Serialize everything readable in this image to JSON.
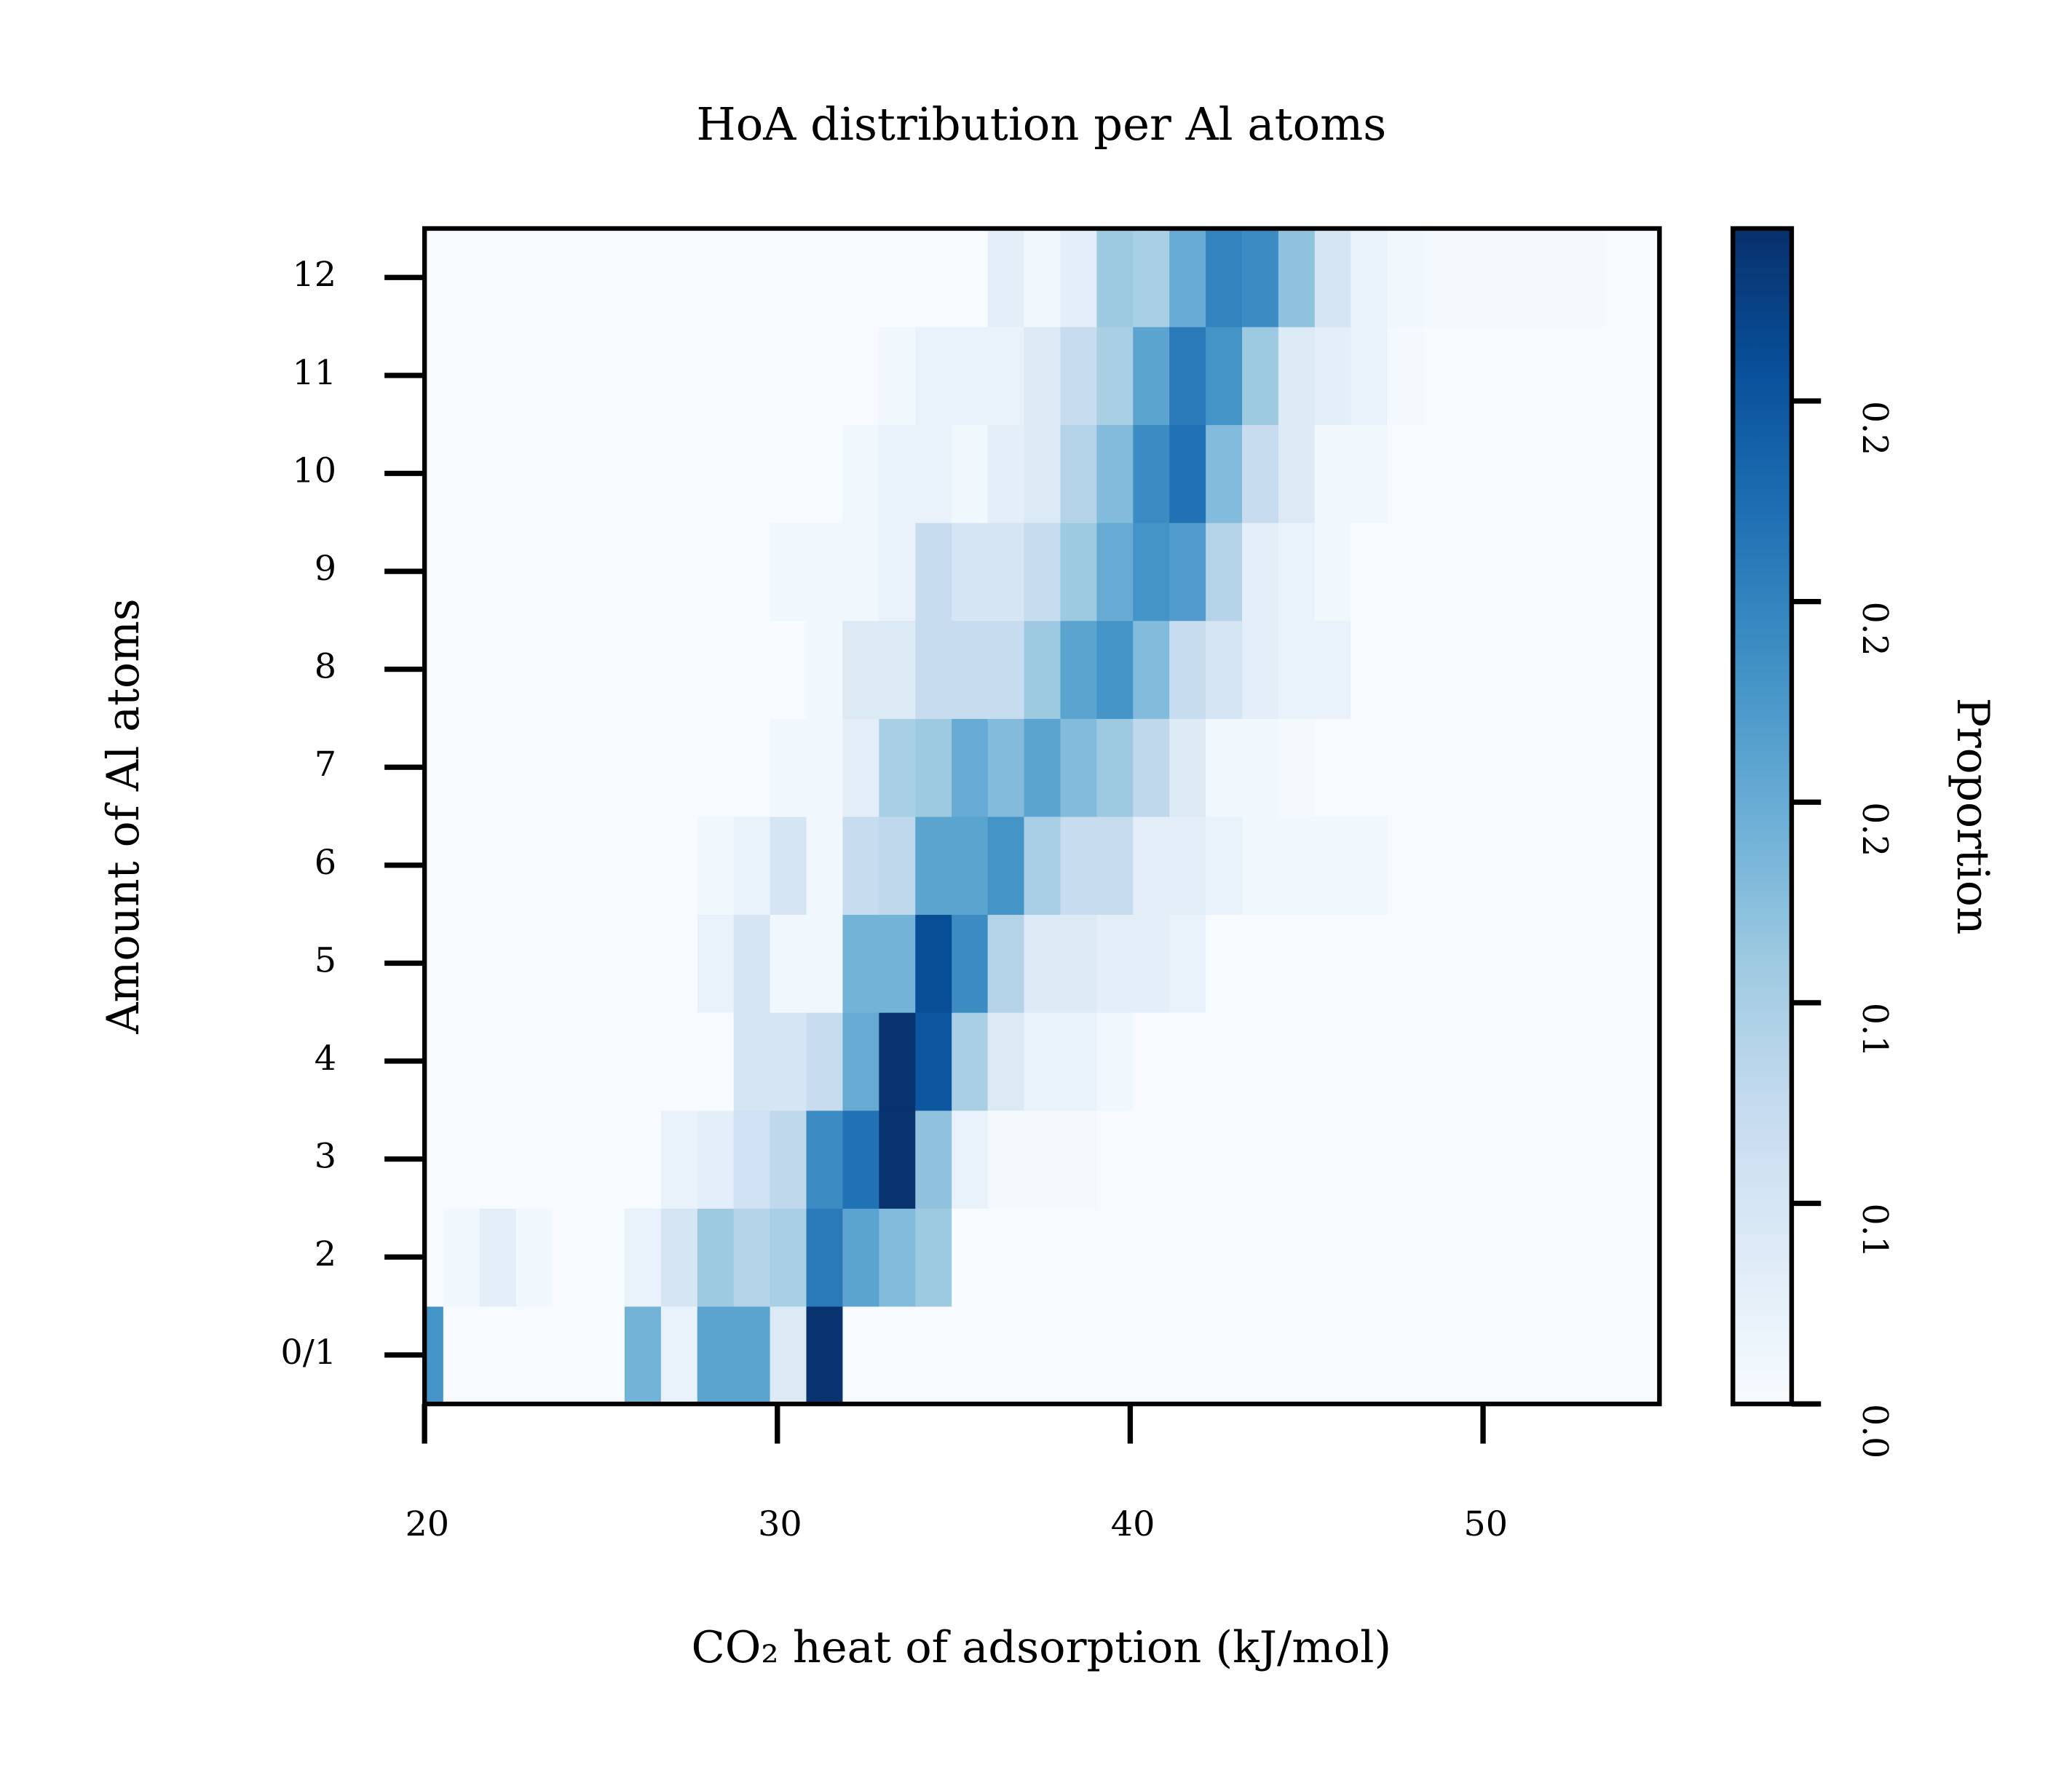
{
  "chart_data": {
    "type": "heatmap",
    "title": "HoA distribution per Al atoms",
    "x_label": "CO₂ heat of adsorption (kJ/mol)",
    "y_label": "Amount of Al atoms",
    "colorbar_label": "Proportion",
    "xlim": [
      20,
      55
    ],
    "xticks": [
      20,
      30,
      40,
      50
    ],
    "x_bins": [
      19.5,
      20.53,
      21.56,
      22.59,
      23.62,
      24.65,
      25.67,
      26.7,
      27.73,
      28.76,
      29.79,
      30.82,
      31.85,
      32.88,
      33.91,
      34.94,
      35.96,
      36.99,
      38.02,
      39.05,
      40.08,
      41.11,
      42.14,
      43.17,
      44.2,
      45.23,
      46.25,
      47.28,
      48.31,
      49.34,
      50.37,
      51.4,
      52.43,
      53.46,
      54.49,
      55.52
    ],
    "categories": [
      "0/1",
      "2",
      "3",
      "4",
      "5",
      "6",
      "7",
      "8",
      "9",
      "10",
      "11",
      "12"
    ],
    "values": [
      [
        0.18,
        0,
        0,
        0,
        0,
        0,
        0.14,
        0.02,
        0.16,
        0.16,
        0.04,
        0.29,
        0,
        0,
        0,
        0,
        0,
        0,
        0,
        0,
        0,
        0,
        0,
        0,
        0,
        0,
        0,
        0,
        0,
        0,
        0,
        0,
        0,
        0,
        0
      ],
      [
        0,
        0.01,
        0.03,
        0.01,
        0,
        0,
        0.02,
        0.05,
        0.11,
        0.09,
        0.1,
        0.21,
        0.16,
        0.13,
        0.11,
        0,
        0,
        0,
        0,
        0,
        0,
        0,
        0,
        0,
        0,
        0,
        0,
        0,
        0,
        0,
        0,
        0,
        0,
        0,
        0
      ],
      [
        0,
        0,
        0,
        0,
        0,
        0,
        0,
        0.02,
        0.03,
        0.06,
        0.08,
        0.19,
        0.22,
        0.29,
        0.12,
        0.02,
        0.005,
        0.005,
        0.005,
        0,
        0,
        0,
        0,
        0,
        0,
        0,
        0,
        0,
        0,
        0,
        0,
        0,
        0,
        0,
        0
      ],
      [
        0,
        0,
        0,
        0,
        0,
        0,
        0,
        0,
        0,
        0.05,
        0.05,
        0.07,
        0.15,
        0.29,
        0.25,
        0.1,
        0.04,
        0.02,
        0.02,
        0.01,
        0,
        0,
        0,
        0,
        0,
        0,
        0,
        0,
        0,
        0,
        0,
        0,
        0,
        0,
        0
      ],
      [
        0,
        0,
        0,
        0,
        0,
        0,
        0,
        0,
        0.02,
        0.05,
        0.01,
        0.01,
        0.14,
        0.14,
        0.26,
        0.19,
        0.09,
        0.04,
        0.04,
        0.03,
        0.03,
        0.02,
        0,
        0,
        0,
        0,
        0,
        0,
        0,
        0,
        0,
        0,
        0,
        0,
        0
      ],
      [
        0,
        0,
        0,
        0,
        0,
        0,
        0,
        0,
        0.01,
        0.02,
        0.05,
        0.01,
        0.07,
        0.08,
        0.16,
        0.16,
        0.18,
        0.1,
        0.07,
        0.07,
        0.03,
        0.03,
        0.02,
        0.01,
        0.01,
        0.01,
        0.01,
        0,
        0,
        0,
        0,
        0,
        0,
        0,
        0
      ],
      [
        0,
        0,
        0,
        0,
        0,
        0,
        0,
        0,
        0,
        0,
        0.01,
        0.01,
        0.03,
        0.1,
        0.11,
        0.15,
        0.13,
        0.16,
        0.13,
        0.11,
        0.08,
        0.04,
        0.01,
        0.01,
        0.005,
        0,
        0,
        0,
        0,
        0,
        0,
        0,
        0,
        0,
        0
      ],
      [
        0,
        0,
        0,
        0,
        0,
        0,
        0,
        0,
        0,
        0,
        0,
        0.01,
        0.04,
        0.04,
        0.07,
        0.07,
        0.07,
        0.11,
        0.16,
        0.18,
        0.13,
        0.07,
        0.05,
        0.03,
        0.02,
        0.02,
        0,
        0,
        0,
        0,
        0,
        0,
        0,
        0,
        0
      ],
      [
        0,
        0,
        0,
        0,
        0,
        0,
        0,
        0,
        0,
        0,
        0.01,
        0.01,
        0.01,
        0.02,
        0.07,
        0.05,
        0.05,
        0.07,
        0.11,
        0.15,
        0.18,
        0.17,
        0.09,
        0.03,
        0.02,
        0.01,
        0,
        0,
        0,
        0,
        0,
        0,
        0,
        0,
        0
      ],
      [
        0,
        0,
        0,
        0,
        0,
        0,
        0,
        0,
        0,
        0,
        0,
        0,
        0.01,
        0.02,
        0.02,
        0.01,
        0.03,
        0.04,
        0.09,
        0.13,
        0.19,
        0.22,
        0.13,
        0.07,
        0.04,
        0.01,
        0.01,
        0,
        0,
        0,
        0,
        0,
        0,
        0,
        0
      ],
      [
        0,
        0,
        0,
        0,
        0,
        0,
        0,
        0,
        0,
        0,
        0,
        0,
        0,
        0.01,
        0.02,
        0.02,
        0.02,
        0.04,
        0.07,
        0.1,
        0.16,
        0.21,
        0.18,
        0.11,
        0.04,
        0.03,
        0.02,
        0.005,
        0,
        0,
        0,
        0,
        0,
        0,
        0
      ],
      [
        0,
        0,
        0,
        0,
        0,
        0,
        0,
        0,
        0,
        0,
        0,
        0,
        0,
        0,
        0,
        0,
        0.03,
        0.01,
        0.03,
        0.11,
        0.1,
        0.15,
        0.2,
        0.19,
        0.12,
        0.05,
        0.02,
        0.01,
        0.005,
        0.005,
        0.005,
        0.005,
        0.005,
        0,
        0
      ]
    ],
    "colormap": [
      "#f7fbff",
      "#deebf7",
      "#c6dbef",
      "#9ecae1",
      "#6baed6",
      "#4292c6",
      "#2171b5",
      "#08519c",
      "#08306b"
    ],
    "clim": [
      0,
      0.293
    ],
    "cticks": [
      {
        "value": 0,
        "label": "0.0"
      },
      {
        "value": 0.05,
        "label": "0.1"
      },
      {
        "value": 0.1,
        "label": "0.1"
      },
      {
        "value": 0.15,
        "label": "0.2"
      },
      {
        "value": 0.2,
        "label": "0.2"
      },
      {
        "value": 0.25,
        "label": "0.2"
      }
    ]
  }
}
